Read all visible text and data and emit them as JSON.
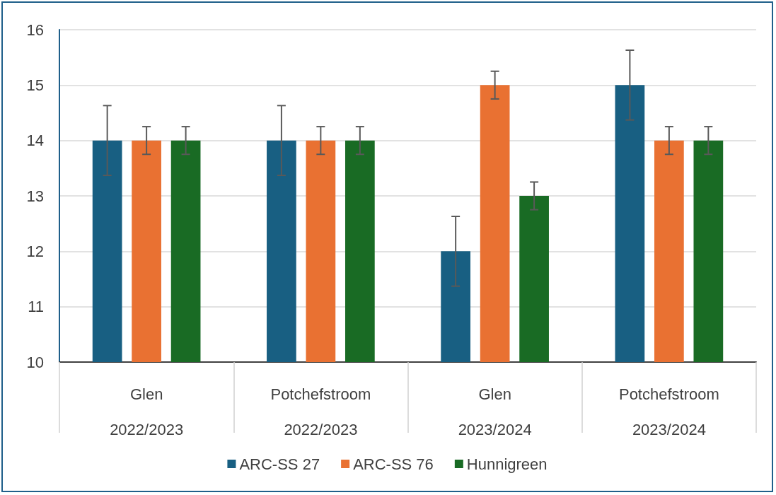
{
  "chart_data": {
    "type": "bar",
    "categories": [
      "Glen\n2022/2023",
      "Potchefstroom\n2022/2023",
      "Glen\n2023/2024",
      "Potchefstroom\n2023/2024"
    ],
    "series": [
      {
        "name": "ARC-SS 27",
        "color": "#185f82",
        "values": [
          14,
          14,
          12,
          15
        ],
        "errors": [
          0.63,
          0.63,
          0.63,
          0.63
        ]
      },
      {
        "name": "ARC-SS 76",
        "color": "#e97132",
        "values": [
          14,
          14,
          15,
          14
        ],
        "errors": [
          0.25,
          0.25,
          0.25,
          0.25
        ]
      },
      {
        "name": "Hunnigreen",
        "color": "#196b24",
        "values": [
          14,
          14,
          13,
          14
        ],
        "errors": [
          0.25,
          0.25,
          0.25,
          0.25
        ]
      }
    ],
    "ylim": [
      10,
      16
    ],
    "yticks": [
      10,
      11,
      12,
      13,
      14,
      15,
      16
    ],
    "grid": "y",
    "legend": "bottom"
  }
}
